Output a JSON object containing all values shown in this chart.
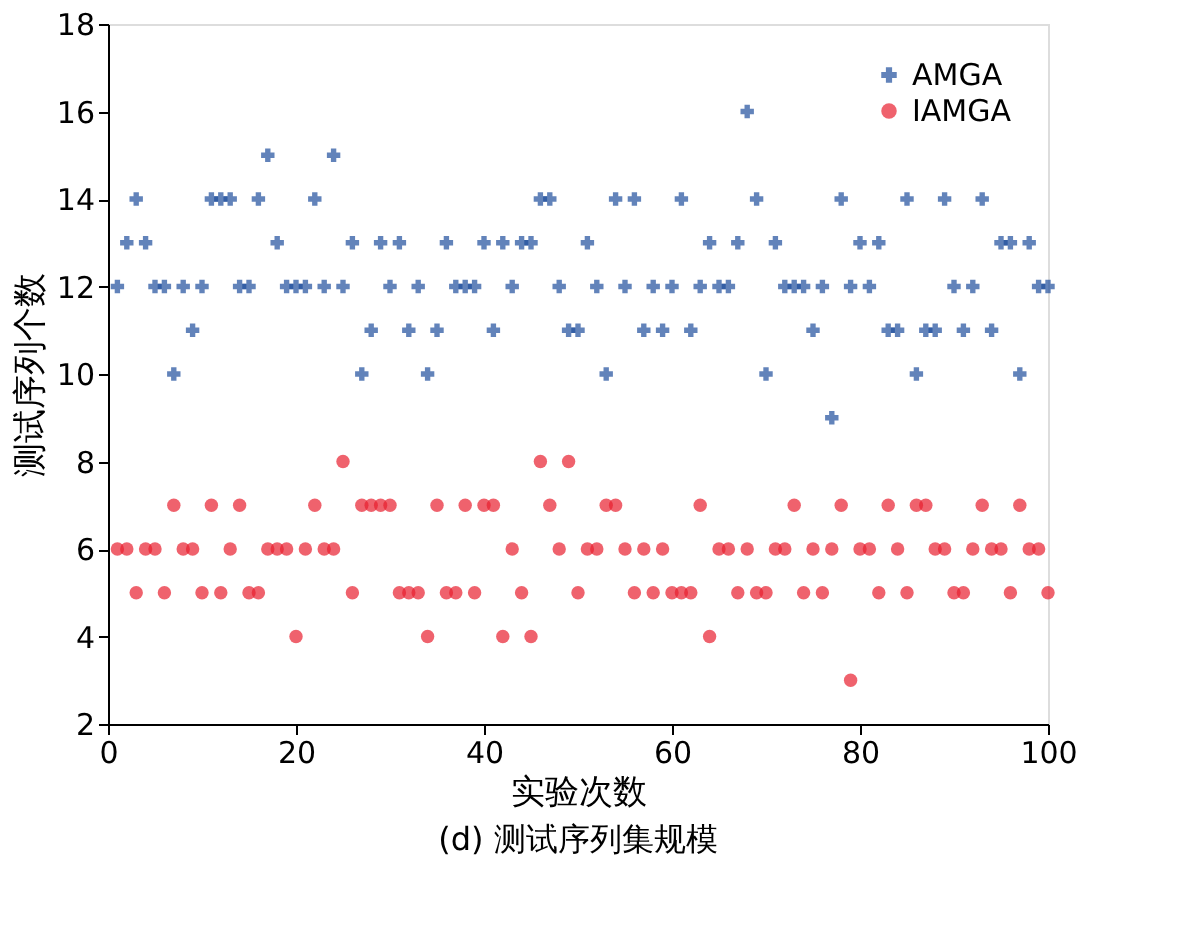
{
  "chart_data": {
    "type": "scatter",
    "title": "(d) 测试序列集规模",
    "xlabel": "实验次数",
    "ylabel": "测试序列个数",
    "x": [
      1,
      2,
      3,
      4,
      5,
      6,
      7,
      8,
      9,
      10,
      11,
      12,
      13,
      14,
      15,
      16,
      17,
      18,
      19,
      20,
      21,
      22,
      23,
      24,
      25,
      26,
      27,
      28,
      29,
      30,
      31,
      32,
      33,
      34,
      35,
      36,
      37,
      38,
      39,
      40,
      41,
      42,
      43,
      44,
      45,
      46,
      47,
      48,
      49,
      50,
      51,
      52,
      53,
      54,
      55,
      56,
      57,
      58,
      59,
      60,
      61,
      62,
      63,
      64,
      65,
      66,
      67,
      68,
      69,
      70,
      71,
      72,
      73,
      74,
      75,
      76,
      77,
      78,
      79,
      80,
      81,
      82,
      83,
      84,
      85,
      86,
      87,
      88,
      89,
      90,
      91,
      92,
      93,
      94,
      95,
      96,
      97,
      98,
      99,
      100
    ],
    "series": [
      {
        "name": "AMGA",
        "color": "#1f4e9c",
        "marker": "cross",
        "values": [
          12,
          13,
          14,
          13,
          12,
          12,
          10,
          12,
          11,
          12,
          14,
          14,
          14,
          12,
          12,
          14,
          15,
          13,
          12,
          12,
          12,
          14,
          12,
          15,
          12,
          13,
          10,
          11,
          13,
          12,
          13,
          11,
          12,
          10,
          11,
          13,
          12,
          12,
          12,
          13,
          11,
          13,
          12,
          13,
          13,
          14,
          14,
          12,
          11,
          11,
          13,
          12,
          10,
          14,
          12,
          14,
          11,
          12,
          11,
          12,
          14,
          11,
          12,
          13,
          12,
          12,
          13,
          16,
          14,
          10,
          13,
          12,
          12,
          12,
          11,
          12,
          9,
          14,
          12,
          13,
          12,
          13,
          11,
          11,
          14,
          10,
          11,
          11,
          14,
          12,
          11,
          12,
          14,
          11,
          13,
          13,
          10,
          13,
          12,
          12
        ]
      },
      {
        "name": "IAMGA",
        "color": "#e8202f",
        "marker": "circle",
        "values": [
          6,
          6,
          5,
          6,
          6,
          5,
          7,
          6,
          6,
          5,
          7,
          5,
          6,
          7,
          5,
          5,
          6,
          6,
          6,
          4,
          6,
          7,
          6,
          6,
          8,
          5,
          7,
          7,
          7,
          7,
          5,
          5,
          5,
          4,
          7,
          5,
          5,
          7,
          5,
          7,
          7,
          4,
          6,
          5,
          4,
          8,
          7,
          6,
          8,
          5,
          6,
          6,
          7,
          7,
          6,
          5,
          6,
          5,
          6,
          5,
          5,
          5,
          7,
          4,
          6,
          6,
          5,
          6,
          5,
          5,
          6,
          6,
          7,
          5,
          6,
          5,
          6,
          7,
          3,
          6,
          6,
          5,
          7,
          6,
          5,
          7,
          7,
          6,
          6,
          5,
          5,
          6,
          7,
          6,
          6,
          5,
          7,
          6,
          6,
          5
        ]
      }
    ],
    "xlim": [
      0,
      100
    ],
    "xticks": [
      0,
      20,
      40,
      60,
      80,
      100
    ],
    "ylim": [
      2,
      18
    ],
    "yticks": [
      2,
      4,
      6,
      8,
      10,
      12,
      14,
      16,
      18
    ],
    "grid": false,
    "legend": "top right"
  }
}
